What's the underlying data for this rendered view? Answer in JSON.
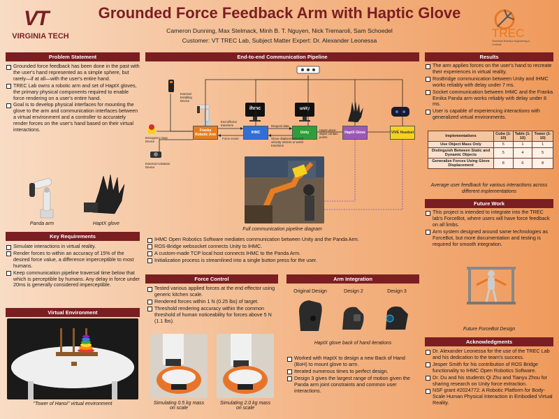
{
  "header": {
    "title": "Grounded Force Feedback Arm with Haptic Glove",
    "authors": "Cameron Dunning, Max Stelmack, Minh B. T. Nguyen, Nick Tremaroli, Sam Schoedel",
    "customer": "Customer: VT TREC Lab, Subject Matter Expert: Dr. Alexander Leonessa",
    "vt_logo_text": "VIRGINIA TECH",
    "vt_monogram": "VT",
    "trec_logo_text": "TREC",
    "trec_subtitle": "Terrestrial Robotics Engineering & Controls"
  },
  "problem": {
    "heading": "Problem Statement",
    "bullets": [
      "Grounded force feedback has been done in the past with the user's hand represented as a simple sphere, but rarely—if at all—with the user's entire hand.",
      "TREC Lab owns a robotic arm and set of HaptX gloves, the primary physical components required to enable force rendering on a user's entire hand.",
      "Goal is to develop physical interfaces for mounting the glove to the arm and communication interfaces between a virtual environment and a controller to accurately render forces on the user's hand based on their virtual interactions."
    ],
    "caption_left": "Panda arm",
    "caption_right": "HaptX glove"
  },
  "requirements": {
    "heading": "Key Requirements",
    "bullets": [
      "Simulate interactions in virtual reality.",
      "Render forces to within an accuracy of 15% of the desired force value, a difference imperceptible to most humans.",
      "Keep communication pipeline traversal time below that which is perceptible by humans. Any delay in force under 20ms is generally considered imperceptible."
    ]
  },
  "virtual_env": {
    "heading": "Virtual Environment",
    "caption": "\"Tower of Hanoi\" virtual environment"
  },
  "pipeline": {
    "heading": "End-to-end Communication Pipeline",
    "nodes": {
      "panda": "Franka Robotic Arm",
      "ihmc": "IHMC",
      "unity": "Unity",
      "haptx": "HaptX Glove",
      "vive": "VIVE Headset"
    },
    "labels": {
      "external_enabling": "External Enabling Device",
      "emergency_stop": "Emergency Stop Device",
      "external_activation": "External Activation Device",
      "end_effector": "End effector transform",
      "force_vector": "Force vector",
      "request_data": "Request data",
      "glove_displacement": "Glove displacement and velocity vectors or world transform",
      "haptx_contact": "HaptX glove-object contact points"
    },
    "logo_ihmc": "ihmc",
    "logo_unity": "unity",
    "caption": "Full communication pipeline diagram",
    "bullets": [
      "IHMC Open Robotics Software mediates communication between Unity and the Panda Arm.",
      "ROS-Bridge websocket connects Unity to IHMC.",
      "A custom-made TCP local host connects IHMC to the Panda Arm.",
      "Initialization process is streamlined into a single button press for the user."
    ]
  },
  "force_control": {
    "heading": "Force Control",
    "bullets": [
      "Tested various applied forces at the end effector using generic kitchen scale.",
      "Rendered forces within 1 N (0.25 lbs) of target.",
      "Threshold rendering accuracy within the common threshold of human noticeability for forces above 5 N (1.1 lbs)."
    ],
    "caption_left": "Simulating 0.5 kg mass on scale",
    "caption_right": "Simulating 2.0 kg mass on scale"
  },
  "arm_integration": {
    "heading": "Arm Integration",
    "designs": [
      "Original Design",
      "Design 2",
      "Design 3"
    ],
    "caption": "HaptX glove back of hand iterations",
    "bullets": [
      "Worked with HaptX to design a new Back of Hand (BoH) to mount glove to arm.",
      "Iterated numerous times to perfect design.",
      "Design 3 gives the largest range of motion given the Panda arm joint constraints and common user interactions."
    ]
  },
  "results": {
    "heading": "Results",
    "bullets": [
      "The arm applies forces on the user's hand to recreate their experiences in virtual reality.",
      "RosBridge communication between Unity and IHMC works reliably with delay under 7 ms.",
      "Socket communication between IHMC and the Franka Emika Panda arm works reliably with delay under 8 ms.",
      "User is capable of experiencing interactions with generalized virtual environments."
    ],
    "table": {
      "headers": [
        "Implementations",
        "Cube (1-10)",
        "Table (1-10)",
        "Tower (1-10)"
      ],
      "rows": [
        [
          "Use Object Mass Only",
          "5",
          "1",
          "1"
        ],
        [
          "Distinguish Between Static and Dynamic Objects",
          "5",
          "4",
          "5"
        ],
        [
          "Generalize Forces Using Glove Displacement",
          "8",
          "6",
          "8"
        ]
      ]
    },
    "table_caption": "Average user feedback for various interactions across different implementations"
  },
  "future": {
    "heading": "Future Work",
    "bullets": [
      "This project is intended to integrate into the TREC lab's ForceBot, where users will have force feedback on all limbs.",
      "Arm system designed around same technologies as ForceBot, but more documentation and testing is required for smooth integration."
    ],
    "caption": "Future ForceBot Design"
  },
  "acknowledgments": {
    "heading": "Acknowledgments",
    "bullets": [
      "Dr. Alexander Leonessa for the use of the TREC Lab and his dedication to the team's success.",
      "Jesper Smith for his contribution of ROS Bridge functionality to IHMC Open Robotics Software.",
      "Dr. Du and his students Qi Zhu and Tianyu Zhou for sharing research on Unity force extraction.",
      "NSF grant #2024772: A Robotic Platform for Body-Scale Human Physical Interaction in Embodied Virtual Reality."
    ]
  },
  "colors": {
    "maroon": "#7a1e22",
    "orange": "#e87722",
    "panda_box": "#e67e22",
    "ihmc_box": "#2f6fd6",
    "unity_box": "#2e9e3a",
    "haptx_box": "#9b59b6",
    "vive_box": "#f4d21f"
  }
}
